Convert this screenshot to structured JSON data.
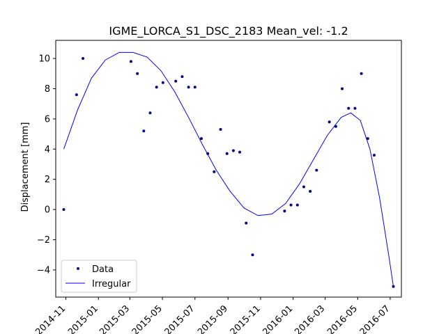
{
  "chart_data": {
    "type": "scatter",
    "title": "IGME_LORCA_S1_DSC_2183     Mean_vel: -1.2",
    "xlabel": "",
    "ylabel": "Displacement [mm]",
    "xlim": [
      "2014-10-13",
      "2016-07-22"
    ],
    "ylim": [
      -5.8,
      11.2
    ],
    "x_ticks": [
      "2014-11",
      "2015-01",
      "2015-03",
      "2015-05",
      "2015-07",
      "2015-09",
      "2015-11",
      "2016-01",
      "2016-03",
      "2016-05",
      "2016-07"
    ],
    "y_ticks": [
      -4,
      -2,
      0,
      2,
      4,
      6,
      8,
      10
    ],
    "grid": false,
    "legend_position": "lower-left",
    "colors": {
      "data": "#00007f",
      "fit": "#0000ff"
    },
    "series": [
      {
        "name": "Data",
        "kind": "points",
        "x": [
          "2014-10-28",
          "2014-11-21",
          "2014-12-03",
          "2015-03-03",
          "2015-03-15",
          "2015-03-27",
          "2015-04-08",
          "2015-04-20",
          "2015-05-02",
          "2015-05-26",
          "2015-06-07",
          "2015-06-19",
          "2015-07-01",
          "2015-07-13",
          "2015-07-25",
          "2015-08-06",
          "2015-08-18",
          "2015-08-30",
          "2015-09-11",
          "2015-09-23",
          "2015-10-05",
          "2015-10-17",
          "2015-12-16",
          "2015-12-28",
          "2016-01-09",
          "2016-01-21",
          "2016-02-02",
          "2016-02-14",
          "2016-03-09",
          "2016-03-21",
          "2016-04-02",
          "2016-04-14",
          "2016-04-26",
          "2016-05-08",
          "2016-05-20",
          "2016-06-01",
          "2016-07-07"
        ],
        "y": [
          0.0,
          7.6,
          10.0,
          9.8,
          9.0,
          5.2,
          6.4,
          8.1,
          8.4,
          8.5,
          8.8,
          8.1,
          8.1,
          4.7,
          3.7,
          2.5,
          5.3,
          3.7,
          3.9,
          3.8,
          -0.9,
          -3.0,
          -0.1,
          0.3,
          0.3,
          1.5,
          1.2,
          2.6,
          5.8,
          5.5,
          8.0,
          6.7,
          6.7,
          9.0,
          4.7,
          3.6,
          -5.1
        ]
      },
      {
        "name": "Irregular",
        "kind": "line",
        "x": [
          "2014-10-28",
          "2014-11-23",
          "2014-12-19",
          "2015-01-14",
          "2015-02-09",
          "2015-03-07",
          "2015-04-02",
          "2015-04-28",
          "2015-05-24",
          "2015-06-19",
          "2015-07-15",
          "2015-08-10",
          "2015-09-05",
          "2015-10-01",
          "2015-10-27",
          "2015-11-22",
          "2015-12-18",
          "2016-01-13",
          "2016-02-08",
          "2016-03-05",
          "2016-03-31",
          "2016-04-18",
          "2016-05-06",
          "2016-05-24",
          "2016-06-11",
          "2016-06-29",
          "2016-07-07"
        ],
        "y": [
          4.0,
          6.6,
          8.7,
          9.9,
          10.4,
          10.4,
          10.1,
          9.2,
          7.8,
          6.1,
          4.3,
          2.6,
          1.2,
          0.1,
          -0.4,
          -0.3,
          0.4,
          1.7,
          3.3,
          4.9,
          6.1,
          6.4,
          5.9,
          4.0,
          0.8,
          -3.2,
          -5.1
        ]
      }
    ]
  }
}
